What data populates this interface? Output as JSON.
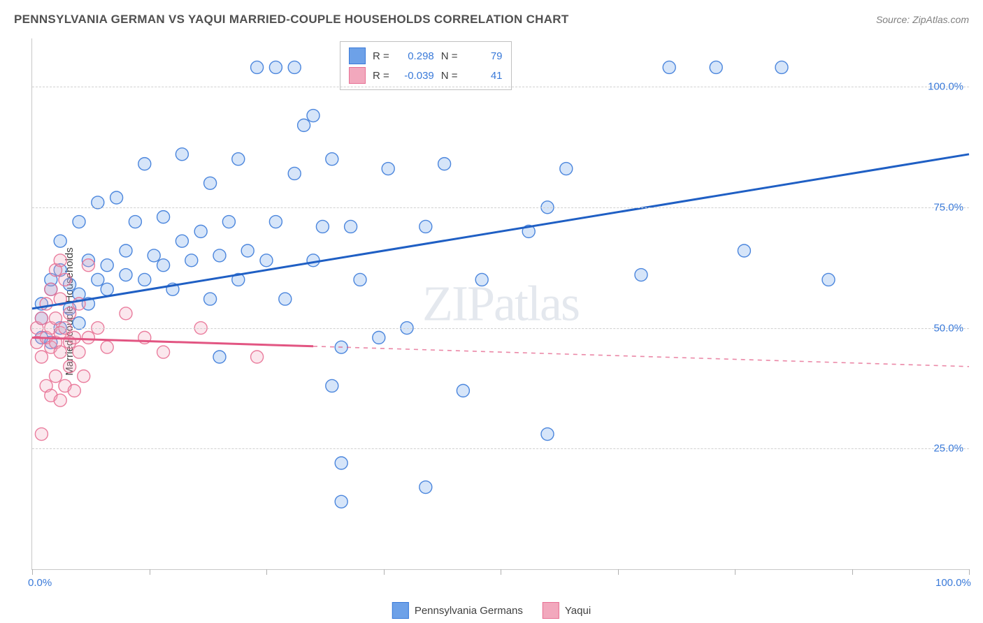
{
  "title": "PENNSYLVANIA GERMAN VS YAQUI MARRIED-COUPLE HOUSEHOLDS CORRELATION CHART",
  "source": "Source: ZipAtlas.com",
  "watermark": "ZIPatlas",
  "ylabel": "Married-couple Households",
  "chart": {
    "type": "scatter",
    "xlim": [
      0,
      100
    ],
    "ylim": [
      0,
      110
    ],
    "x_ticks": [
      0,
      12.5,
      25,
      37.5,
      50,
      62.5,
      75,
      87.5,
      100
    ],
    "x_tick_labels_shown": {
      "0": "0.0%",
      "100": "100.0%"
    },
    "y_gridlines": [
      25,
      50,
      75,
      100
    ],
    "y_tick_labels": {
      "25": "25.0%",
      "50": "50.0%",
      "75": "75.0%",
      "100": "100.0%"
    },
    "background_color": "#ffffff",
    "grid_color": "#d0d0d0",
    "axis_color": "#c8c8c8",
    "tick_label_color": "#3a7ad9",
    "point_radius": 9,
    "point_fill_opacity": 0.28,
    "point_stroke_opacity": 0.9,
    "point_stroke_width": 1.4,
    "trend_line_width": 3
  },
  "series": [
    {
      "name": "Pennsylvania Germans",
      "color": "#6da1e8",
      "stroke": "#3a7ad9",
      "line_color": "#1f5fc4",
      "R": "0.298",
      "N": "79",
      "trend": {
        "x1": 0,
        "y1": 54,
        "x2": 100,
        "y2": 86,
        "solid_until": 100
      },
      "points": [
        [
          1,
          48
        ],
        [
          1,
          52
        ],
        [
          1,
          55
        ],
        [
          2,
          47
        ],
        [
          2,
          58
        ],
        [
          2,
          60
        ],
        [
          3,
          50
        ],
        [
          3,
          62
        ],
        [
          3,
          68
        ],
        [
          4,
          54
        ],
        [
          4,
          59
        ],
        [
          5,
          51
        ],
        [
          5,
          57
        ],
        [
          5,
          72
        ],
        [
          6,
          55
        ],
        [
          6,
          64
        ],
        [
          7,
          60
        ],
        [
          7,
          76
        ],
        [
          8,
          58
        ],
        [
          8,
          63
        ],
        [
          9,
          77
        ],
        [
          10,
          61
        ],
        [
          10,
          66
        ],
        [
          11,
          72
        ],
        [
          12,
          60
        ],
        [
          12,
          84
        ],
        [
          13,
          65
        ],
        [
          14,
          63
        ],
        [
          14,
          73
        ],
        [
          15,
          58
        ],
        [
          16,
          68
        ],
        [
          16,
          86
        ],
        [
          17,
          64
        ],
        [
          18,
          70
        ],
        [
          19,
          56
        ],
        [
          19,
          80
        ],
        [
          20,
          44
        ],
        [
          20,
          65
        ],
        [
          21,
          72
        ],
        [
          22,
          60
        ],
        [
          22,
          85
        ],
        [
          23,
          66
        ],
        [
          24,
          104
        ],
        [
          25,
          64
        ],
        [
          26,
          72
        ],
        [
          26,
          104
        ],
        [
          27,
          56
        ],
        [
          28,
          82
        ],
        [
          28,
          104
        ],
        [
          29,
          92
        ],
        [
          30,
          64
        ],
        [
          30,
          94
        ],
        [
          31,
          71
        ],
        [
          32,
          85
        ],
        [
          32,
          38
        ],
        [
          33,
          14
        ],
        [
          33,
          46
        ],
        [
          33,
          22
        ],
        [
          34,
          71
        ],
        [
          35,
          60
        ],
        [
          37,
          48
        ],
        [
          38,
          83
        ],
        [
          40,
          50
        ],
        [
          41,
          104
        ],
        [
          42,
          17
        ],
        [
          42,
          71
        ],
        [
          44,
          84
        ],
        [
          46,
          37
        ],
        [
          48,
          60
        ],
        [
          53,
          70
        ],
        [
          55,
          28
        ],
        [
          55,
          75
        ],
        [
          57,
          83
        ],
        [
          65,
          61
        ],
        [
          68,
          104
        ],
        [
          73,
          104
        ],
        [
          76,
          66
        ],
        [
          80,
          104
        ],
        [
          85,
          60
        ]
      ]
    },
    {
      "name": "Yaqui",
      "color": "#f2a8bd",
      "stroke": "#e87094",
      "line_color": "#e25582",
      "R": "-0.039",
      "N": "41",
      "trend": {
        "x1": 0,
        "y1": 48,
        "x2": 100,
        "y2": 42,
        "solid_until": 30
      },
      "points": [
        [
          0.5,
          47
        ],
        [
          0.5,
          50
        ],
        [
          1,
          28
        ],
        [
          1,
          44
        ],
        [
          1,
          52
        ],
        [
          1.5,
          38
        ],
        [
          1.5,
          48
        ],
        [
          1.5,
          55
        ],
        [
          2,
          36
        ],
        [
          2,
          46
        ],
        [
          2,
          50
        ],
        [
          2,
          58
        ],
        [
          2.5,
          40
        ],
        [
          2.5,
          47
        ],
        [
          2.5,
          52
        ],
        [
          2.5,
          62
        ],
        [
          3,
          35
        ],
        [
          3,
          45
        ],
        [
          3,
          49
        ],
        [
          3,
          56
        ],
        [
          3,
          64
        ],
        [
          3.5,
          38
        ],
        [
          3.5,
          50
        ],
        [
          3.5,
          60
        ],
        [
          4,
          42
        ],
        [
          4,
          47
        ],
        [
          4,
          53
        ],
        [
          4.5,
          37
        ],
        [
          4.5,
          48
        ],
        [
          5,
          45
        ],
        [
          5,
          55
        ],
        [
          5.5,
          40
        ],
        [
          6,
          48
        ],
        [
          6,
          63
        ],
        [
          7,
          50
        ],
        [
          8,
          46
        ],
        [
          10,
          53
        ],
        [
          12,
          48
        ],
        [
          14,
          45
        ],
        [
          18,
          50
        ],
        [
          24,
          44
        ]
      ]
    }
  ],
  "legend_labels": {
    "R": "R =",
    "N": "N ="
  }
}
